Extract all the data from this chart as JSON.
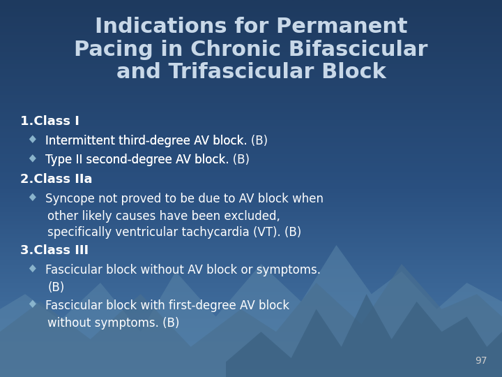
{
  "title_lines": [
    "Indications for Permanent",
    "Pacing in Chronic Bifascicular",
    "and Trifascicular Block"
  ],
  "title_color": "#c8d8e8",
  "title_fontsize": 22,
  "content": [
    {
      "type": "heading",
      "text": "1.Class I"
    },
    {
      "type": "bullet",
      "text": "Intermittent third-degree AV block. ",
      "italic": "(B)"
    },
    {
      "type": "bullet",
      "text": "Type II second-degree AV block. ",
      "italic": "(B)"
    },
    {
      "type": "heading",
      "text": "2.Class IIa"
    },
    {
      "type": "bullet",
      "text": "Syncope not proved to be due to AV block when\nother likely causes have been excluded,\nspecifically ventricular tachycardia (VT). ",
      "italic": "(B)"
    },
    {
      "type": "heading",
      "text": "3.Class III"
    },
    {
      "type": "bullet",
      "text": "Fascicular block without AV block or symptoms.\n",
      "italic": "(B)"
    },
    {
      "type": "bullet",
      "text": "Fascicular block with first-degree AV block\nwithout symptoms. ",
      "italic": "(B)"
    }
  ],
  "heading_color": "#ffffff",
  "heading_fontsize": 13,
  "bullet_color": "#ffffff",
  "bullet_fontsize": 12,
  "bullet_marker_color": "#8ab4cc",
  "page_number": "97",
  "page_number_color": "#cccccc",
  "bg_color_top": "#1e3a5f",
  "bg_color_mid": "#2a5080",
  "bg_color_bottom": "#4a7aaa",
  "mountain1_color": "#5a85a8",
  "mountain2_color": "#4a7090",
  "mountain3_color": "#3a6080"
}
